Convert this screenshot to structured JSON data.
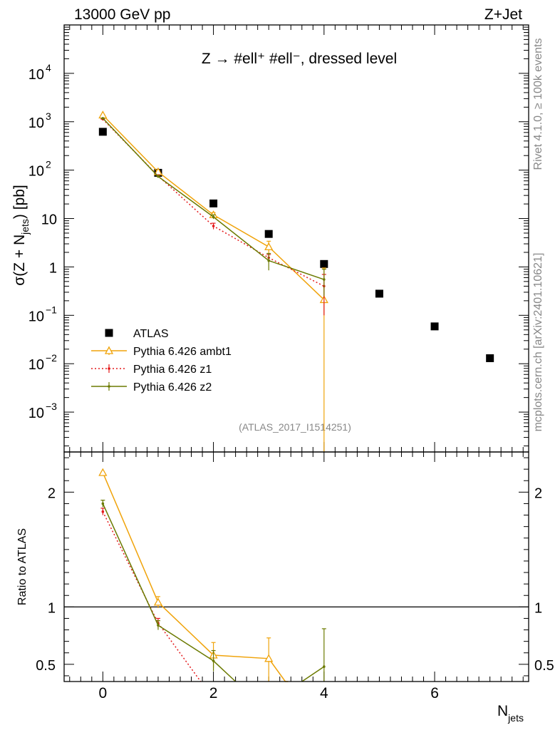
{
  "header": {
    "left": "13000 GeV pp",
    "right": "Z+Jet"
  },
  "panel_title": "Z → #ell⁺ #ell⁻, dressed level",
  "watermark": "(ATLAS_2017_I1514251)",
  "side_text": {
    "rivet": "Rivet 4.1.0, ≥ 100k events",
    "mcplots": "mcplots.cern.ch [arXiv:2401.10621]"
  },
  "axis_labels": {
    "main_ylabel": "σ(Z + Nⱼₑₜₛ) [pb]",
    "main_ylabel_base": "σ(Z + N",
    "main_ylabel_sub": "jets",
    "main_ylabel_tail": ") [pb]",
    "ratio_ylabel": "Ratio to ATLAS",
    "xlabel_base": "N",
    "xlabel_sub": "jets"
  },
  "legend": [
    {
      "label": "ATLAS",
      "color": "#000000",
      "style": "square"
    },
    {
      "label": "Pythia 6.426 ambt1",
      "color": "#f0a30a",
      "style": "triangle"
    },
    {
      "label": "Pythia 6.426 z1",
      "color": "#e41a1c",
      "style": "dotted"
    },
    {
      "label": "Pythia 6.426 z2",
      "color": "#6b7a00",
      "style": "solid"
    }
  ],
  "chart_data": [
    {
      "type": "scatter",
      "name": "main",
      "xlim": [
        -0.7,
        7.7
      ],
      "ylim": [
        0.00015,
        100000
      ],
      "yscale": "log",
      "x_ticks": [
        0,
        2,
        4,
        6
      ],
      "y_ticks": [
        {
          "v": 0.001,
          "label": "10",
          "exp": "−3"
        },
        {
          "v": 0.01,
          "label": "10",
          "exp": "−2"
        },
        {
          "v": 0.1,
          "label": "10",
          "exp": "−1"
        },
        {
          "v": 1,
          "label": "1",
          "exp": ""
        },
        {
          "v": 10,
          "label": "10",
          "exp": ""
        },
        {
          "v": 100,
          "label": "10",
          "exp": "2"
        },
        {
          "v": 1000,
          "label": "10",
          "exp": "3"
        },
        {
          "v": 10000,
          "label": "10",
          "exp": "4"
        }
      ],
      "series": [
        {
          "name": "ATLAS",
          "color": "#000000",
          "x": [
            0,
            1,
            2,
            3,
            4,
            5,
            6,
            7
          ],
          "y": [
            620,
            88,
            20.5,
            4.8,
            1.15,
            0.28,
            0.059,
            0.013
          ]
        },
        {
          "name": "Pythia 6.426 ambt1",
          "color": "#f0a30a",
          "x": [
            0,
            1,
            2,
            3,
            4
          ],
          "y": [
            1370,
            92,
            11.9,
            2.6,
            0.21
          ],
          "err_lo": [
            1370,
            86,
            10.4,
            1.85,
            0.0001
          ],
          "err_hi": [
            1370,
            98,
            13.2,
            3.4,
            0.95
          ]
        },
        {
          "name": "Pythia 6.426 z1",
          "color": "#e41a1c",
          "x": [
            0,
            1,
            2,
            3,
            4
          ],
          "y": [
            1130,
            76,
            7.0,
            1.55,
            0.4
          ],
          "err_lo": [
            1130,
            72,
            6.0,
            1.3,
            0.1
          ],
          "err_hi": [
            1130,
            80,
            8.0,
            1.8,
            0.7
          ]
        },
        {
          "name": "Pythia 6.426 z2",
          "color": "#6b7a00",
          "x": [
            0,
            1,
            2,
            3,
            4
          ],
          "y": [
            1180,
            74,
            10.8,
            1.35,
            0.55
          ],
          "err_lo": [
            1180,
            70,
            9.8,
            0.85,
            0.25
          ],
          "err_hi": [
            1180,
            78,
            11.9,
            1.9,
            0.9
          ]
        }
      ]
    },
    {
      "type": "line",
      "name": "ratio",
      "xlabel": "Njets",
      "ylabel": "Ratio to ATLAS",
      "xlim": [
        -0.7,
        7.7
      ],
      "ylim": [
        0.35,
        2.35
      ],
      "x_ticks": [
        0,
        2,
        4,
        6
      ],
      "y_ticks": [
        0.5,
        1,
        2
      ],
      "series": [
        {
          "name": "Pythia 6.426 ambt1",
          "color": "#f0a30a",
          "x": [
            0,
            1,
            2,
            3,
            3.3,
            3.35
          ],
          "y": [
            2.17,
            1.04,
            0.58,
            0.55,
            0.35,
            0.35
          ],
          "err_x": [
            0,
            1,
            2,
            3
          ],
          "err_y": [
            2.17,
            1.04,
            0.58,
            0.55
          ],
          "err_lo": [
            2.17,
            0.99,
            0.47,
            0.35
          ],
          "err_hi": [
            2.17,
            1.09,
            0.69,
            0.73
          ]
        },
        {
          "name": "Pythia 6.426 z1",
          "color": "#e41a1c",
          "x": [
            0,
            1,
            1.77
          ],
          "y": [
            1.83,
            0.86,
            0.35
          ],
          "err_x": [
            0,
            1
          ],
          "err_y": [
            1.83,
            0.86
          ],
          "err_lo": [
            1.8,
            0.82
          ],
          "err_hi": [
            1.86,
            0.9
          ]
        },
        {
          "name": "Pythia 6.426 z2",
          "color": "#6b7a00",
          "x": [
            0,
            1,
            2,
            2.4
          ],
          "y": [
            1.9,
            0.84,
            0.53,
            0.35
          ],
          "seg2_x": [
            3.6,
            4
          ],
          "seg2_y": [
            0.35,
            0.48
          ],
          "err_x": [
            0,
            1,
            2,
            4
          ],
          "err_y": [
            1.9,
            0.84,
            0.53,
            0.48
          ],
          "err_lo": [
            1.87,
            0.8,
            0.44,
            0.35
          ],
          "err_hi": [
            1.93,
            0.88,
            0.62,
            0.81
          ]
        }
      ]
    }
  ]
}
